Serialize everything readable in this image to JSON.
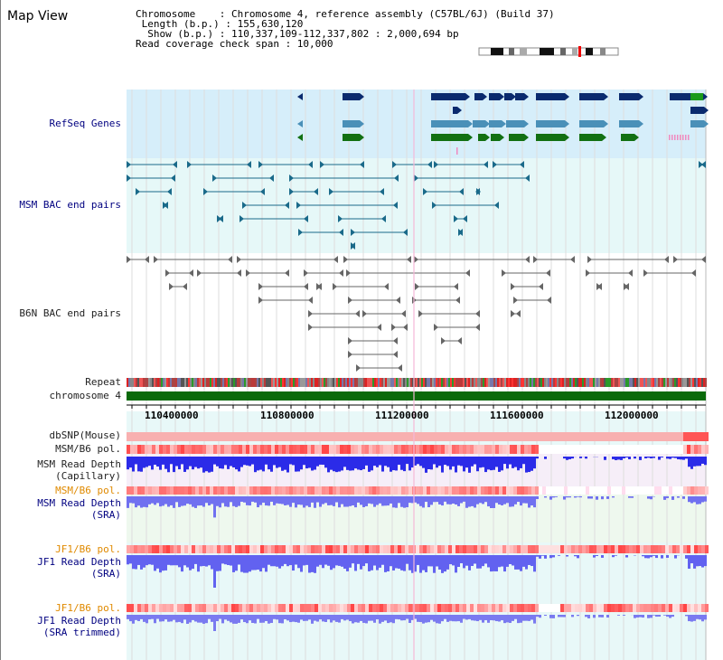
{
  "title": "Map View",
  "info": {
    "l1": "Chromosome    : Chromosome 4, reference assembly (C57BL/6J) (Build 37)",
    "l2": " Length (b.p.) : 155,630,120",
    "l3": "  Show (b.p.) : 110,337,109-112,337,802 : 2,000,694 bp",
    "l4": "Read coverage check span : 10,000"
  },
  "labels": {
    "refseq": "RefSeq Genes",
    "msm_bac": "MSM BAC end pairs",
    "b6n_bac": "B6N BAC end pairs",
    "repeat": "Repeat",
    "chrom": "chromosome 4",
    "dbsnp": "dbSNP(Mouse)",
    "msm_b6_pol": "MSM/B6 pol.",
    "msm_depth_cap_1": "MSM Read Depth",
    "msm_depth_cap_2": "(Capillary)",
    "msm_b6_pol2": "MSM/B6 pol.",
    "msm_depth_sra_1": "MSM Read Depth",
    "msm_depth_sra_2": "(SRA)",
    "jf1_b6_pol": "JF1/B6 pol.",
    "jf1_depth_sra_1": "JF1 Read Depth",
    "jf1_depth_sra_2": "(SRA)",
    "jf1_b6_pol2": "JF1/B6 pol.",
    "jf1_depth_trim_1": "JF1 Read Depth",
    "jf1_depth_trim_2": "(SRA trimmed)"
  },
  "axis_ticks": [
    "110400000",
    "110800000",
    "111200000",
    "111600000",
    "112000000"
  ],
  "colors": {
    "refseq_bg": "#d6eefa",
    "bac_bg": "#e6f8f8",
    "gene_dark": "#0a2a6e",
    "gene_mid": "#4a90b8",
    "gene_green": "#127012",
    "chrom_green": "#0a6a0a",
    "depth_blue": "#2b2be8",
    "depth_lightblue": "#7070f0"
  }
}
